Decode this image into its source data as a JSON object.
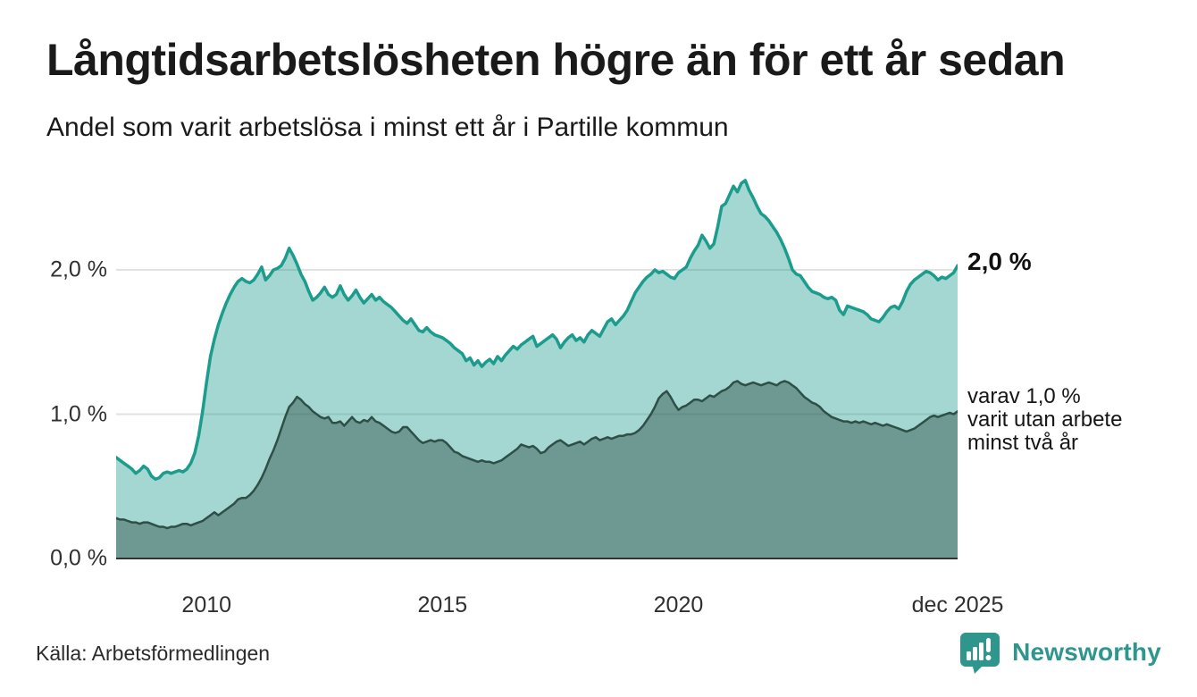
{
  "header": {
    "title": "Långtidsarbetslösheten högre än för ett år sedan",
    "subtitle": "Andel som varit arbetslösa i minst ett år i Partille kommun"
  },
  "chart_data": {
    "type": "area",
    "title": "Långtidsarbetslösheten högre än för ett år sedan",
    "subtitle": "Andel som varit arbetslösa i minst ett år i Partille kommun",
    "unit": "%",
    "grid": "horizontal",
    "legend_position": "end-of-line annotations",
    "x_axis": {
      "start": {
        "year": 2008,
        "month": 2
      },
      "end": {
        "year": 2025,
        "month": 12
      },
      "frequency": "monthly",
      "ticks": [
        {
          "label": "2010",
          "year": 2010,
          "month": 1
        },
        {
          "label": "2015",
          "year": 2015,
          "month": 1
        },
        {
          "label": "2020",
          "year": 2020,
          "month": 1
        },
        {
          "label": "dec 2025",
          "year": 2025,
          "month": 12
        }
      ]
    },
    "y_axis": {
      "min": 0,
      "max": 2.7,
      "ticks": [
        {
          "label": "0,0 %",
          "value": 0.0
        },
        {
          "label": "1,0 %",
          "value": 1.0
        },
        {
          "label": "2,0 %",
          "value": 2.0
        }
      ]
    },
    "series": [
      {
        "name": "Arbetslösa minst ett år",
        "line_color": "#1b9c8c",
        "fill_color": "rgba(27,156,140,0.40)",
        "line_width": 3.5,
        "values": [
          0.7,
          0.68,
          0.66,
          0.64,
          0.62,
          0.59,
          0.61,
          0.64,
          0.62,
          0.57,
          0.55,
          0.56,
          0.59,
          0.6,
          0.59,
          0.6,
          0.61,
          0.6,
          0.62,
          0.66,
          0.73,
          0.85,
          1.02,
          1.22,
          1.4,
          1.52,
          1.62,
          1.7,
          1.77,
          1.83,
          1.88,
          1.92,
          1.94,
          1.92,
          1.91,
          1.93,
          1.97,
          2.02,
          1.93,
          1.96,
          2.0,
          2.01,
          2.03,
          2.08,
          2.15,
          2.1,
          2.04,
          1.97,
          1.92,
          1.85,
          1.79,
          1.81,
          1.84,
          1.88,
          1.83,
          1.81,
          1.83,
          1.89,
          1.83,
          1.79,
          1.82,
          1.86,
          1.81,
          1.77,
          1.8,
          1.83,
          1.79,
          1.81,
          1.78,
          1.76,
          1.74,
          1.71,
          1.68,
          1.65,
          1.63,
          1.66,
          1.62,
          1.58,
          1.57,
          1.6,
          1.57,
          1.55,
          1.54,
          1.53,
          1.51,
          1.49,
          1.46,
          1.44,
          1.42,
          1.37,
          1.39,
          1.34,
          1.37,
          1.33,
          1.36,
          1.38,
          1.35,
          1.4,
          1.37,
          1.41,
          1.44,
          1.47,
          1.45,
          1.48,
          1.5,
          1.52,
          1.54,
          1.47,
          1.49,
          1.51,
          1.53,
          1.55,
          1.52,
          1.46,
          1.5,
          1.53,
          1.55,
          1.51,
          1.53,
          1.5,
          1.55,
          1.58,
          1.56,
          1.54,
          1.59,
          1.64,
          1.66,
          1.62,
          1.65,
          1.68,
          1.72,
          1.78,
          1.84,
          1.88,
          1.92,
          1.95,
          1.97,
          2.0,
          1.98,
          1.99,
          1.97,
          1.95,
          1.94,
          1.98,
          2.0,
          2.02,
          2.08,
          2.13,
          2.17,
          2.24,
          2.2,
          2.15,
          2.18,
          2.3,
          2.44,
          2.46,
          2.52,
          2.58,
          2.54,
          2.6,
          2.62,
          2.55,
          2.5,
          2.44,
          2.39,
          2.37,
          2.34,
          2.3,
          2.26,
          2.21,
          2.15,
          2.08,
          2.0,
          1.97,
          1.96,
          1.92,
          1.88,
          1.85,
          1.84,
          1.83,
          1.81,
          1.8,
          1.81,
          1.79,
          1.72,
          1.69,
          1.75,
          1.74,
          1.73,
          1.72,
          1.71,
          1.69,
          1.66,
          1.65,
          1.64,
          1.67,
          1.71,
          1.74,
          1.75,
          1.73,
          1.78,
          1.85,
          1.9,
          1.93,
          1.95,
          1.97,
          1.99,
          1.98,
          1.96,
          1.93,
          1.95,
          1.94,
          1.96,
          1.98,
          2.03
        ]
      },
      {
        "name": "varav utan arbete minst två år",
        "line_color": "#2e4f48",
        "fill_color": "rgba(46,79,72,0.46)",
        "line_width": 2.5,
        "values": [
          0.28,
          0.27,
          0.27,
          0.26,
          0.25,
          0.25,
          0.24,
          0.25,
          0.25,
          0.24,
          0.23,
          0.22,
          0.22,
          0.21,
          0.22,
          0.22,
          0.23,
          0.24,
          0.24,
          0.23,
          0.24,
          0.25,
          0.26,
          0.28,
          0.3,
          0.32,
          0.3,
          0.32,
          0.34,
          0.36,
          0.38,
          0.41,
          0.42,
          0.42,
          0.44,
          0.47,
          0.51,
          0.56,
          0.62,
          0.69,
          0.75,
          0.82,
          0.9,
          0.98,
          1.05,
          1.08,
          1.12,
          1.1,
          1.07,
          1.05,
          1.02,
          1.0,
          0.98,
          0.97,
          0.98,
          0.94,
          0.94,
          0.95,
          0.92,
          0.95,
          0.98,
          0.95,
          0.94,
          0.96,
          0.95,
          0.98,
          0.95,
          0.94,
          0.92,
          0.9,
          0.88,
          0.87,
          0.88,
          0.91,
          0.91,
          0.88,
          0.85,
          0.82,
          0.8,
          0.81,
          0.82,
          0.81,
          0.82,
          0.82,
          0.8,
          0.77,
          0.74,
          0.73,
          0.71,
          0.7,
          0.69,
          0.68,
          0.67,
          0.68,
          0.67,
          0.67,
          0.66,
          0.67,
          0.68,
          0.7,
          0.72,
          0.74,
          0.76,
          0.79,
          0.78,
          0.77,
          0.78,
          0.76,
          0.73,
          0.74,
          0.77,
          0.79,
          0.81,
          0.82,
          0.8,
          0.78,
          0.79,
          0.8,
          0.81,
          0.79,
          0.81,
          0.83,
          0.84,
          0.82,
          0.83,
          0.84,
          0.83,
          0.84,
          0.85,
          0.85,
          0.86,
          0.86,
          0.87,
          0.89,
          0.92,
          0.96,
          1.0,
          1.05,
          1.11,
          1.14,
          1.16,
          1.12,
          1.07,
          1.03,
          1.05,
          1.06,
          1.08,
          1.1,
          1.1,
          1.09,
          1.11,
          1.13,
          1.12,
          1.14,
          1.16,
          1.17,
          1.19,
          1.22,
          1.23,
          1.21,
          1.2,
          1.21,
          1.22,
          1.21,
          1.2,
          1.21,
          1.22,
          1.21,
          1.2,
          1.22,
          1.23,
          1.22,
          1.2,
          1.18,
          1.15,
          1.12,
          1.1,
          1.08,
          1.07,
          1.05,
          1.02,
          1.0,
          0.98,
          0.97,
          0.96,
          0.95,
          0.95,
          0.94,
          0.95,
          0.94,
          0.95,
          0.94,
          0.93,
          0.94,
          0.93,
          0.92,
          0.93,
          0.92,
          0.91,
          0.9,
          0.89,
          0.88,
          0.89,
          0.9,
          0.92,
          0.94,
          0.96,
          0.98,
          0.99,
          0.98,
          0.99,
          1.0,
          1.01,
          1.0,
          1.02
        ]
      }
    ],
    "end_annotations": {
      "primary": "2,0 %",
      "secondary": [
        "varav 1,0 %",
        "varit utan arbete",
        "minst två år"
      ]
    },
    "colors": {
      "gridline": "#e2e2e2",
      "baseline": "#333333",
      "accent_teal": "#1b9c8c",
      "dark_green": "#2e4f48"
    }
  },
  "footer": {
    "source": "Källa: Arbetsförmedlingen",
    "brand": "Newsworthy",
    "brand_color": "#2e968c"
  }
}
